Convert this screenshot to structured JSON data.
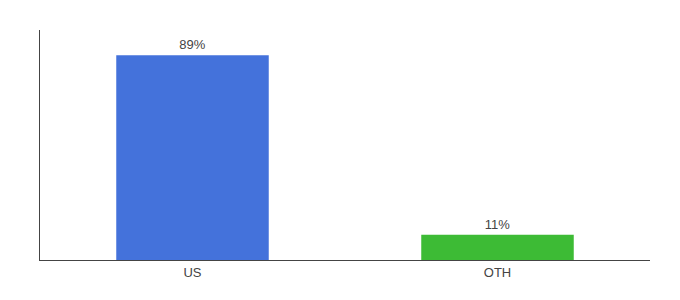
{
  "chart_data": {
    "type": "bar",
    "categories": [
      "US",
      "OTH"
    ],
    "values": [
      89,
      11
    ],
    "value_labels": [
      "89%",
      "11%"
    ],
    "colors": [
      "#4472db",
      "#3dbb35"
    ],
    "ylim": [
      0,
      100
    ],
    "data_labels": true,
    "tick_labels": "x",
    "grid": false
  }
}
